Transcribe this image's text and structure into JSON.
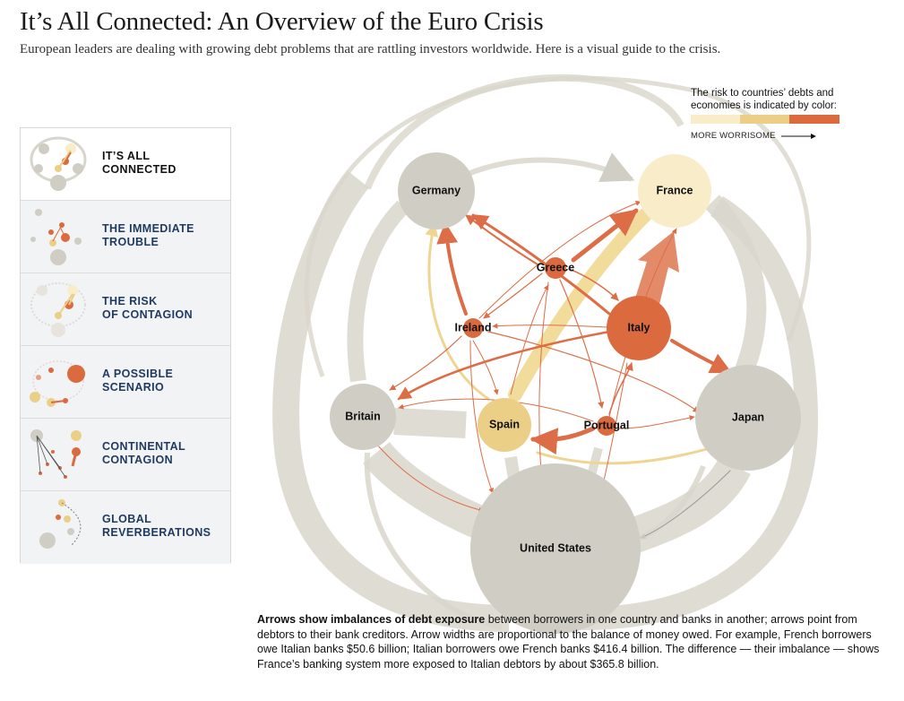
{
  "header": {
    "title": "It’s All Connected: An Overview of the Euro Crisis",
    "subtitle": "European leaders are dealing with growing debt problems that are rattling investors worldwide. Here is a visual guide to the crisis."
  },
  "sidebar": {
    "items": [
      {
        "label": "IT’S ALL\nCONNECTED",
        "active": true
      },
      {
        "label": "THE IMMEDIATE\nTROUBLE",
        "active": false
      },
      {
        "label": "THE RISK\nOF CONTAGION",
        "active": false
      },
      {
        "label": "A POSSIBLE\nSCENARIO",
        "active": false
      },
      {
        "label": "CONTINENTAL\nCONTAGION",
        "active": false
      },
      {
        "label": "GLOBAL\nREVERBERATIONS",
        "active": false
      }
    ]
  },
  "legend": {
    "text": "The risk to countries’ debts and\neconomies is indicated by color:",
    "arrow_label": "MORE WORRISOME",
    "colors": [
      "#f8ecc9",
      "#eccf86",
      "#db6a3e"
    ]
  },
  "diagram": {
    "nodes": {
      "germany": {
        "label": "Germany",
        "risk_color": "#cfcdc4"
      },
      "france": {
        "label": "France",
        "risk_color": "#f8ecc9"
      },
      "greece": {
        "label": "Greece",
        "risk_color": "#db6a3e"
      },
      "ireland": {
        "label": "Ireland",
        "risk_color": "#db6a3e"
      },
      "italy": {
        "label": "Italy",
        "risk_color": "#db6a3e"
      },
      "britain": {
        "label": "Britain",
        "risk_color": "#cfcdc4"
      },
      "spain": {
        "label": "Spain",
        "risk_color": "#eccf86"
      },
      "portugal": {
        "label": "Portugal",
        "risk_color": "#db6a3e"
      },
      "japan": {
        "label": "Japan",
        "risk_color": "#cfcdc4"
      },
      "united_states": {
        "label": "United States",
        "risk_color": "#cfcdc4"
      }
    }
  },
  "caption": {
    "lead": "Arrows show imbalances of debt exposure",
    "body": " between borrowers in one country and banks in another; arrows point from debtors to their bank creditors. Arrow widths are proportional to the balance of money owed. For example, French borrowers owe Italian banks $50.6 billion; Italian borrowers owe French banks $416.4 billion. The difference — their imbalance — shows France’s banking system more exposed to Italian debtors by about $365.8 billion."
  }
}
